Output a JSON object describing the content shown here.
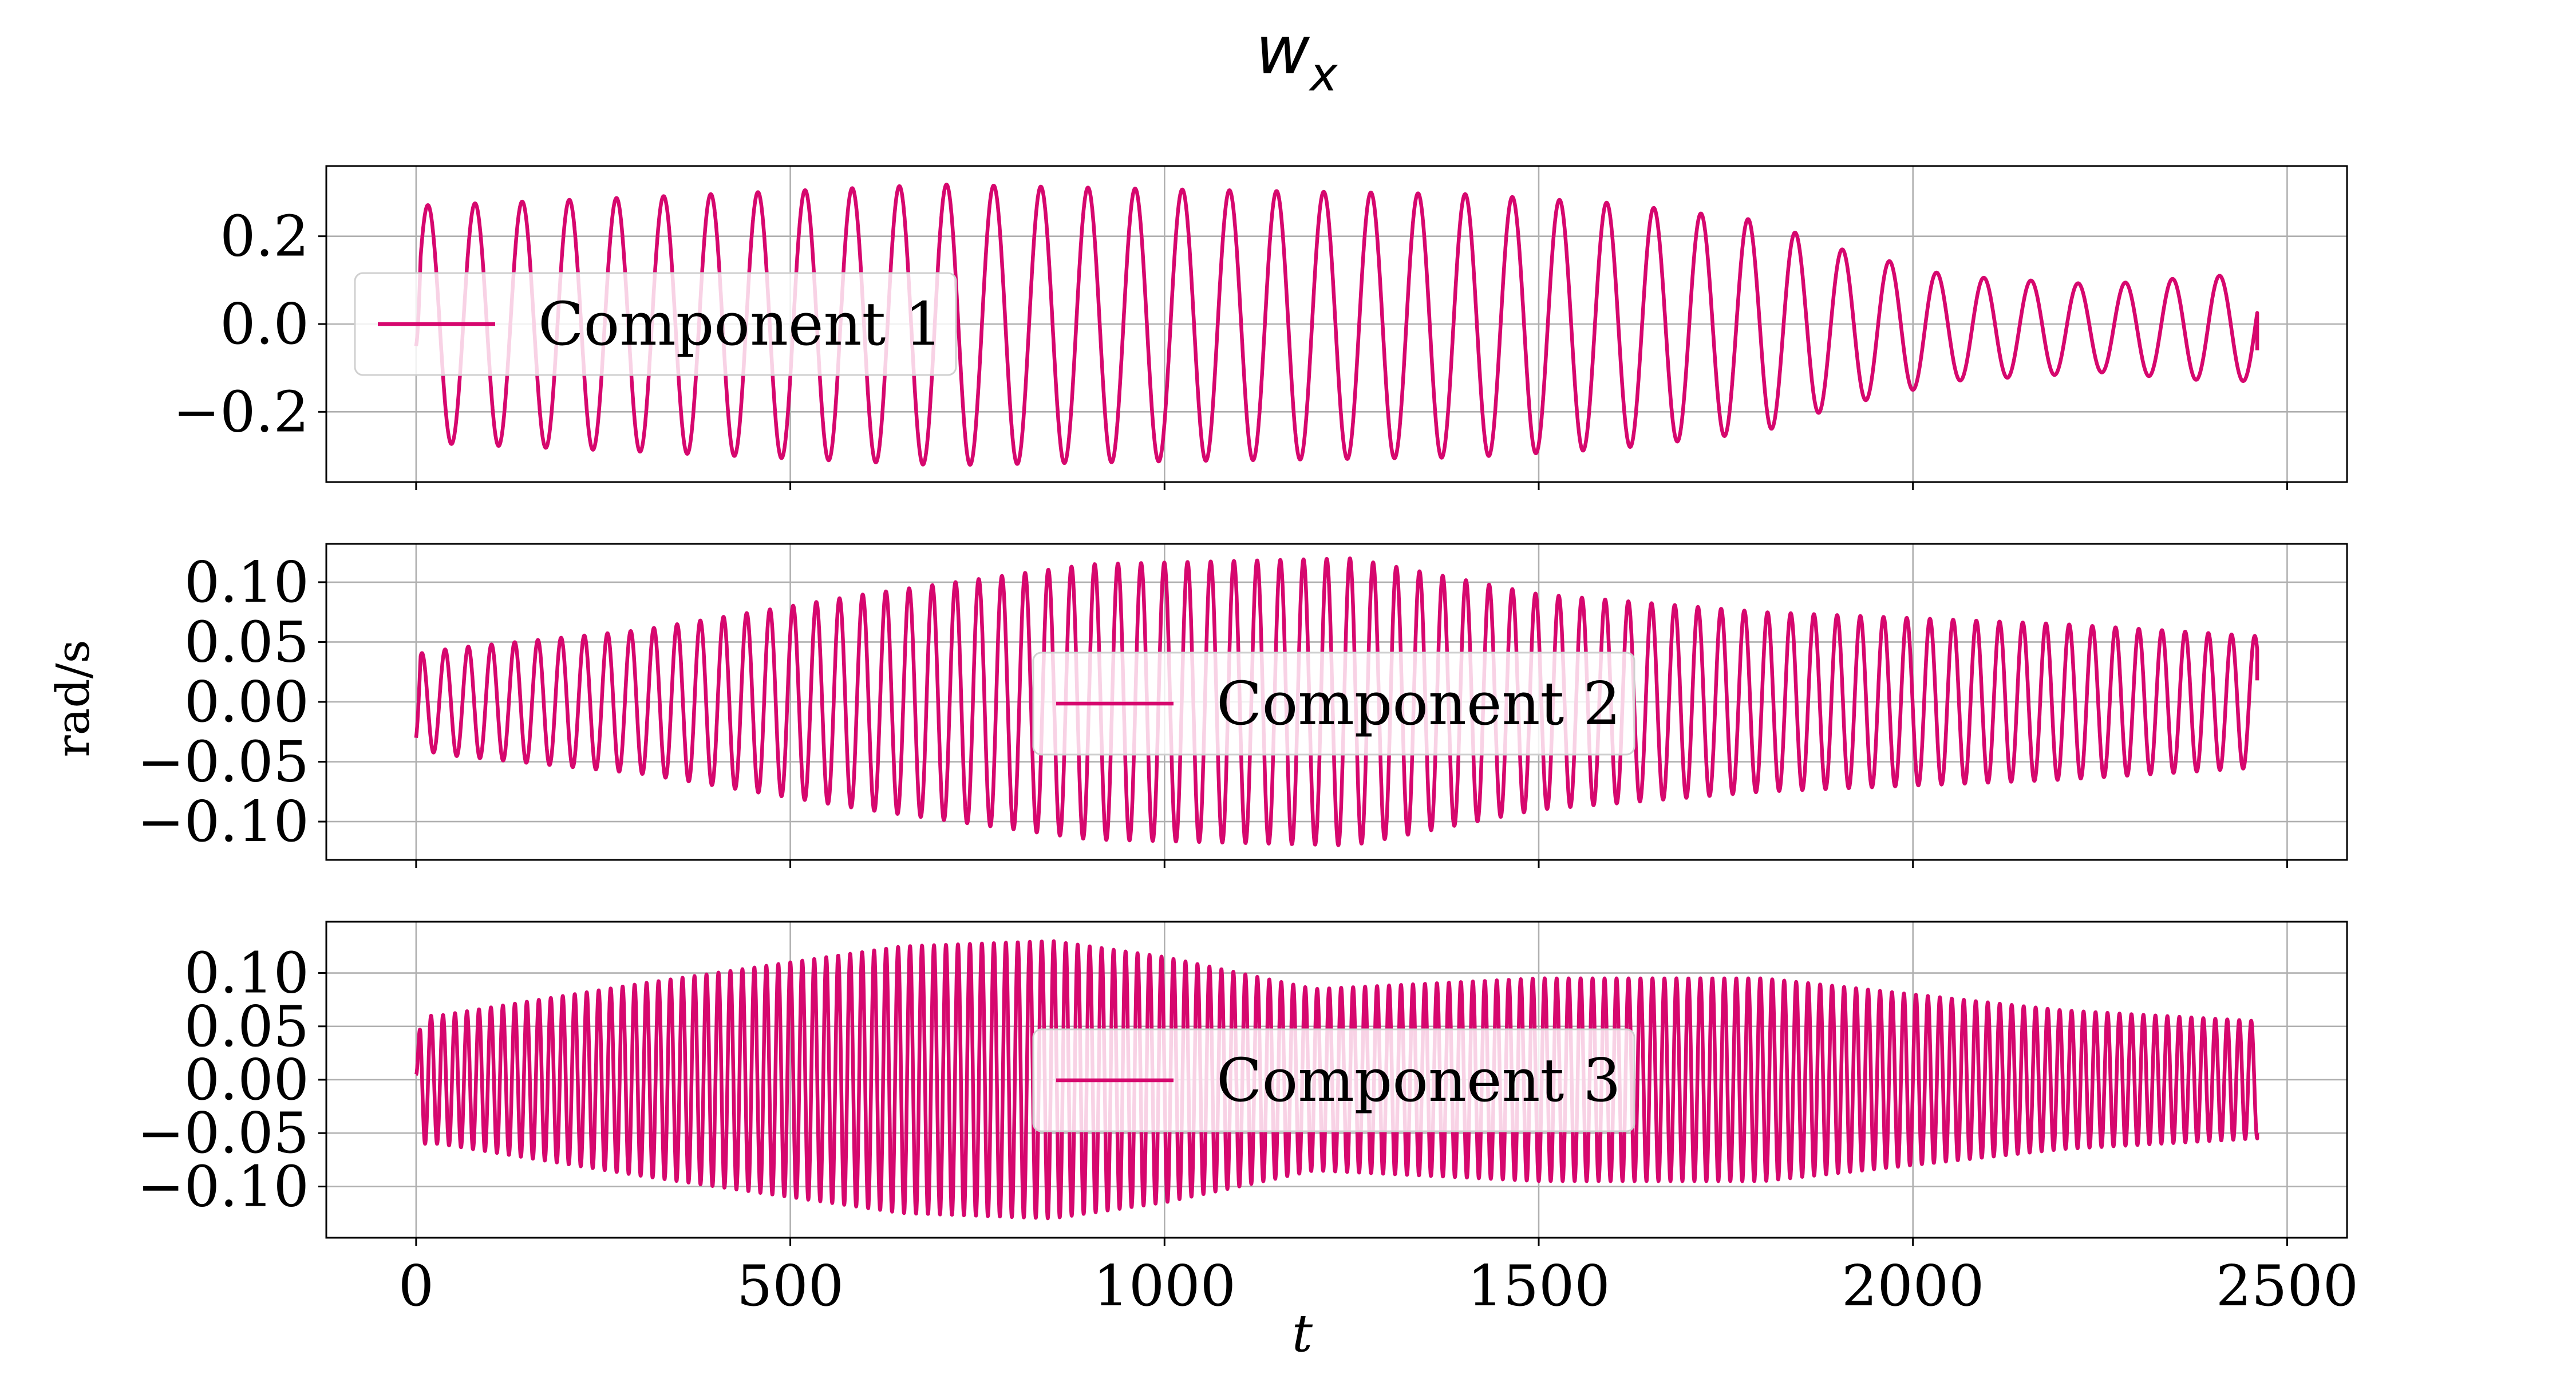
{
  "figure": {
    "title_main": "w",
    "title_sub": "x",
    "ylabel": "rad/s",
    "xlabel": "t",
    "line_color": "#d6076e",
    "grid_color": "#b0b0b0"
  },
  "chart_data": [
    {
      "type": "line",
      "series": [
        {
          "name": "Component 1"
        }
      ],
      "legend": "left",
      "grid": true,
      "xlim": [
        -120,
        2580
      ],
      "ylim": [
        -0.36,
        0.36
      ],
      "yticks": [
        -0.2,
        0.0,
        0.2
      ],
      "ytick_labels": [
        "−0.2",
        "0.0",
        "0.2"
      ],
      "xticks": [
        0,
        500,
        1000,
        1500,
        2000,
        2500
      ],
      "x_range": [
        0,
        2460
      ],
      "start_value": -0.05,
      "end_value": -0.06,
      "period": 63,
      "phase": 0,
      "envelope_t": [
        0,
        300,
        700,
        1000,
        1400,
        1600,
        1800,
        1900,
        2050,
        2250,
        2400,
        2460
      ],
      "envelope_a": [
        0.27,
        0.29,
        0.32,
        0.31,
        0.3,
        0.28,
        0.24,
        0.18,
        0.12,
        0.1,
        0.12,
        0.12
      ],
      "offset_t": [
        0,
        1800,
        2000,
        2460
      ],
      "offset_v": [
        0.0,
        -0.005,
        -0.01,
        -0.01
      ]
    },
    {
      "type": "line",
      "series": [
        {
          "name": "Component 2"
        }
      ],
      "legend": "center",
      "grid": true,
      "xlim": [
        -120,
        2580
      ],
      "ylim": [
        -0.132,
        0.132
      ],
      "yticks": [
        -0.1,
        -0.05,
        0.0,
        0.05,
        0.1
      ],
      "ytick_labels": [
        "−0.10",
        "−0.05",
        "0.00",
        "0.05",
        "0.10"
      ],
      "xticks": [
        0,
        500,
        1000,
        1500,
        2000,
        2500
      ],
      "x_range": [
        0,
        2460
      ],
      "start_value": -0.03,
      "end_value": 0.018,
      "period": 31,
      "phase": 0,
      "envelope_t": [
        0,
        50,
        300,
        600,
        900,
        1250,
        1500,
        1800,
        2200,
        2460
      ],
      "envelope_a": [
        0.04,
        0.045,
        0.06,
        0.09,
        0.115,
        0.12,
        0.09,
        0.075,
        0.065,
        0.055
      ],
      "offset_t": [
        0,
        2460
      ],
      "offset_v": [
        0.0,
        0.0
      ]
    },
    {
      "type": "line",
      "series": [
        {
          "name": "Component 3"
        }
      ],
      "legend": "center",
      "grid": true,
      "xlim": [
        -120,
        2580
      ],
      "ylim": [
        -0.148,
        0.148
      ],
      "yticks": [
        -0.1,
        -0.05,
        0.0,
        0.05,
        0.1
      ],
      "ytick_labels": [
        "−0.10",
        "−0.05",
        "0.00",
        "0.05",
        "0.10"
      ],
      "xticks": [
        0,
        500,
        1000,
        1500,
        2000,
        2500
      ],
      "xtick_labels": [
        "0",
        "500",
        "1000",
        "1500",
        "2000",
        "2500"
      ],
      "x_range": [
        0,
        2460
      ],
      "start_value": 0.005,
      "end_value": -0.05,
      "period": 16,
      "phase": 0,
      "envelope_t": [
        0,
        30,
        300,
        500,
        650,
        850,
        1000,
        1200,
        1500,
        1800,
        2200,
        2460
      ],
      "envelope_a": [
        0.06,
        0.06,
        0.09,
        0.11,
        0.125,
        0.13,
        0.115,
        0.085,
        0.095,
        0.095,
        0.065,
        0.055
      ],
      "offset_t": [
        0,
        2460
      ],
      "offset_v": [
        0.0,
        0.0
      ]
    }
  ]
}
